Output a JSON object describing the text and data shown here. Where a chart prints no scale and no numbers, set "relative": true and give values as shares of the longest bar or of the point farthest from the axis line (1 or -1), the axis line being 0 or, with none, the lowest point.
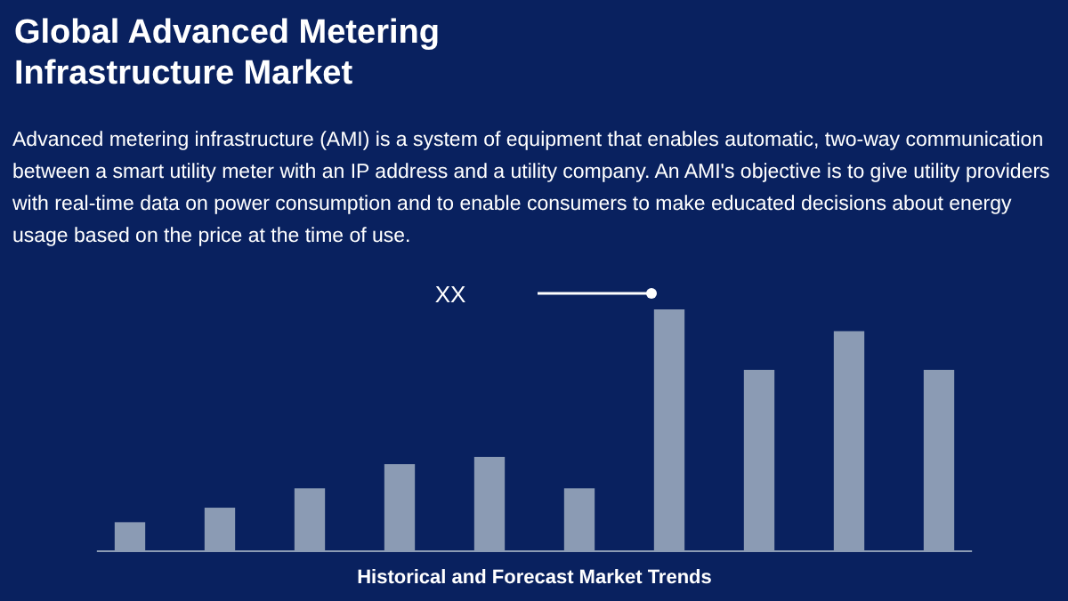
{
  "chart_data": {
    "type": "bar",
    "relative": true,
    "title": "Global Advanced Metering Infrastructure Market",
    "subtitle": "Advanced metering infrastructure (AMI) is a system of equipment that enables automatic, two-way communication between a smart utility meter with an IP address and a utility company. An AMI's objective is to give utility providers with real-time data on power consumption and to enable consumers to make educated decisions about energy usage based on the price at the time of use.",
    "categories": [
      null,
      null,
      null,
      null,
      null,
      null,
      null,
      null,
      null,
      null
    ],
    "values": [
      0.12,
      0.18,
      0.26,
      0.36,
      0.39,
      0.26,
      1,
      0.75,
      0.91,
      0.75
    ],
    "color": "#8b9bb4",
    "annotations": [
      "XX",
      "Historical and Forecast Market Trends"
    ]
  }
}
